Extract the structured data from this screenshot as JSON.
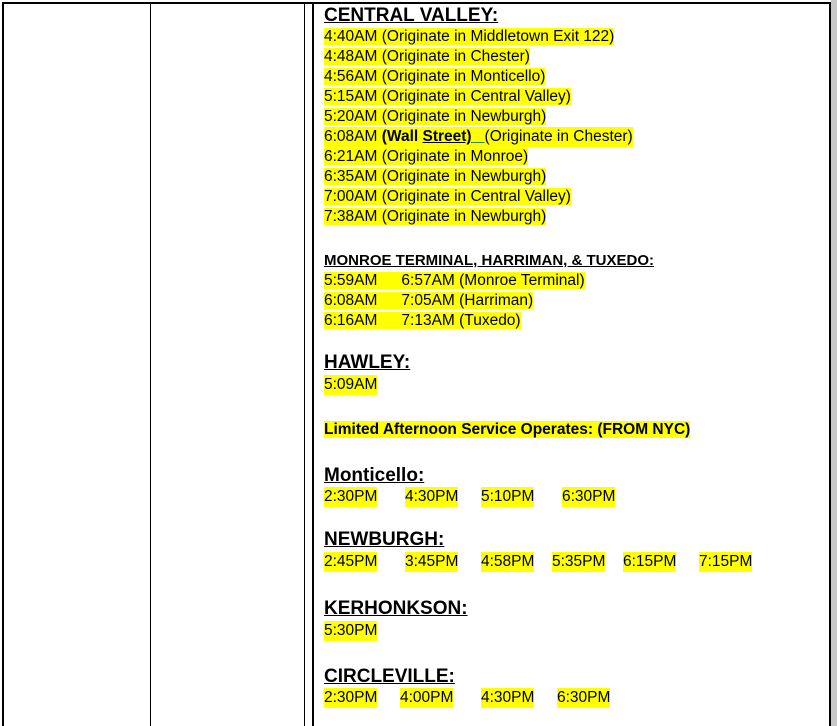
{
  "colors": {
    "highlight": "#ffff00",
    "text": "#000000"
  },
  "central_valley": {
    "heading": "CENTRAL VALLEY:",
    "rows": [
      "4:40AM (Originate in Middletown Exit 122)",
      "4:48AM (Originate in Chester)",
      "4:56AM (Originate in Monticello)",
      "5:15AM (Originate in Central Valley)",
      "5:20AM (Originate in Newburgh)",
      "6:08AM",
      "6:21AM (Originate in Monroe)",
      "6:35AM (Originate in Newburgh)",
      "7:00AM (Originate in Central Valley)",
      "7:38AM (Originate in Newburgh)"
    ],
    "wall_street_row": {
      "time": "6:08AM",
      "wall": "(Wall",
      "street": "Street)",
      "origin": "(Originate in Chester)"
    }
  },
  "monroe": {
    "heading": "MONROE TERMINAL, HARRIMAN, & TUXEDO:",
    "rows": [
      {
        "first": "5:59AM",
        "second": "6:57AM (Monroe Terminal)"
      },
      {
        "first": "6:08AM",
        "second": "7:05AM (Harriman)"
      },
      {
        "first": "6:16AM",
        "second": "7:13AM (Tuxedo)"
      }
    ]
  },
  "hawley": {
    "heading": "HAWLEY:",
    "times": [
      "5:09AM"
    ]
  },
  "afternoon_note": "Limited Afternoon Service Operates: (FROM NYC)",
  "monticello": {
    "heading": "Monticello:",
    "times": [
      "2:30PM",
      "4:30PM",
      "5:10PM",
      "6:30PM"
    ]
  },
  "newburgh": {
    "heading": "NEWBURGH:",
    "times": [
      "2:45PM",
      "3:45PM",
      "4:58PM",
      "5:35PM",
      "6:15PM",
      "7:15PM"
    ]
  },
  "kerhonkson": {
    "heading": "KERHONKSON:",
    "times": [
      "5:30PM"
    ]
  },
  "circleville": {
    "heading": "CIRCLEVILLE:",
    "times": [
      "2:30PM",
      "4:00PM",
      "4:30PM",
      "6:30PM"
    ]
  }
}
